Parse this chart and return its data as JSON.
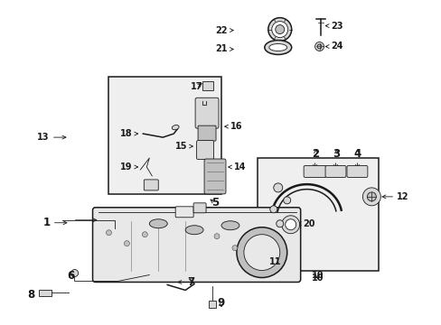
{
  "bg_color": "#ffffff",
  "line_color": "#1a1a1a",
  "box_fill": "#efefef",
  "fig_width": 4.89,
  "fig_height": 3.6,
  "dpi": 100,
  "font_size": 8.5,
  "font_size_small": 7.0,
  "lw_thick": 1.8,
  "lw_med": 1.1,
  "lw_thin": 0.6,
  "part_fill": "#d8d8d8",
  "part_fill2": "#c0c0c0",
  "part_fill3": "#e8e8e8"
}
